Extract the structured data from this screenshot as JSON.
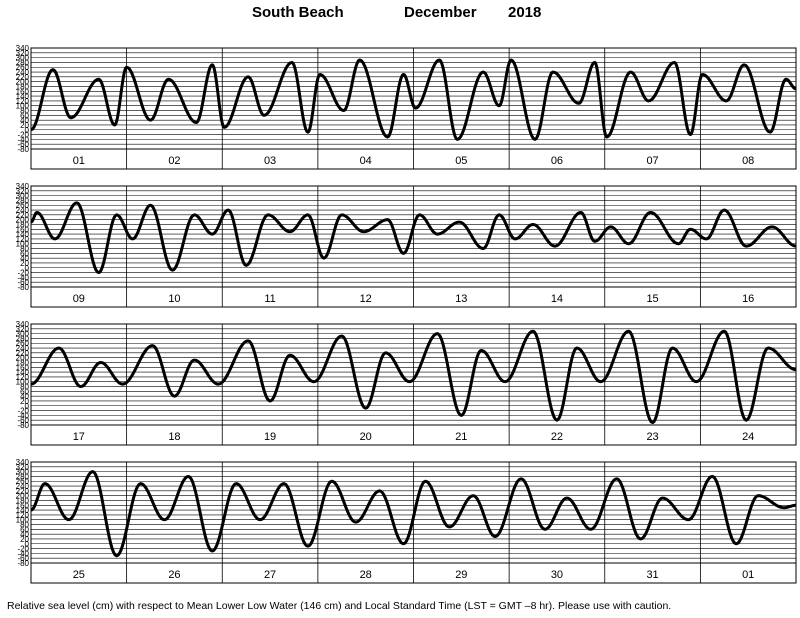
{
  "header": {
    "location": "South Beach",
    "month": "December",
    "year": "2018"
  },
  "footer": {
    "note": "Relative sea level (cm) with respect to Mean Lower Low Water (146 cm) and Local Standard Time (LST = GMT –8 hr). Please use with caution."
  },
  "chart_data": [
    {
      "type": "line",
      "title": "",
      "xlabel": "",
      "ylabel": "",
      "ylim": [
        -80,
        340
      ],
      "y_ticks": [
        340,
        320,
        300,
        280,
        260,
        240,
        220,
        200,
        180,
        160,
        140,
        120,
        100,
        80,
        60,
        40,
        20,
        0,
        -20,
        -40,
        -60,
        -80
      ],
      "categories": [
        "01",
        "02",
        "03",
        "04",
        "05",
        "06",
        "07",
        "08"
      ],
      "x": [
        0,
        5.5,
        10,
        17,
        21,
        24,
        30,
        34.5,
        41.5,
        45.5,
        48.5,
        54.5,
        58.5,
        65.5,
        69.5,
        72.5,
        78.5,
        82.5,
        89.5,
        93.5,
        96.5,
        102.5,
        107,
        113.5,
        117.5,
        120.5,
        126.5,
        131,
        137.5,
        141.5,
        144.5,
        150.5,
        155,
        161.5,
        165.5,
        168.5,
        174.5,
        179,
        185.5,
        189.5,
        192
      ],
      "y": [
        0,
        250,
        50,
        210,
        20,
        260,
        40,
        210,
        30,
        270,
        10,
        220,
        60,
        280,
        -10,
        230,
        80,
        290,
        -30,
        230,
        90,
        290,
        -40,
        240,
        100,
        290,
        -40,
        240,
        110,
        280,
        -30,
        240,
        120,
        280,
        -20,
        230,
        120,
        270,
        -10,
        210,
        170
      ]
    },
    {
      "type": "line",
      "title": "",
      "xlabel": "",
      "ylabel": "",
      "ylim": [
        -80,
        340
      ],
      "y_ticks": [
        340,
        320,
        300,
        280,
        260,
        240,
        220,
        200,
        180,
        160,
        140,
        120,
        100,
        80,
        60,
        40,
        20,
        0,
        -20,
        -40,
        -60,
        -80
      ],
      "categories": [
        "09",
        "10",
        "11",
        "12",
        "13",
        "14",
        "15",
        "16"
      ],
      "x": [
        0,
        1.5,
        6,
        11.5,
        17,
        21.5,
        25.5,
        30,
        35.5,
        41,
        45.5,
        49.5,
        54,
        59.5,
        65,
        69.5,
        73.5,
        78,
        83.5,
        89.5,
        93.5,
        97.5,
        102,
        107.5,
        113.5,
        117.5,
        121.5,
        126,
        131.5,
        138,
        141.5,
        145.5,
        150,
        155.5,
        162.5,
        165.5,
        169.5,
        174,
        179.5,
        186,
        192
      ],
      "y": [
        190,
        230,
        120,
        270,
        -20,
        220,
        120,
        260,
        -10,
        220,
        140,
        240,
        10,
        220,
        150,
        220,
        40,
        220,
        150,
        200,
        60,
        220,
        140,
        190,
        80,
        220,
        120,
        180,
        90,
        230,
        110,
        170,
        100,
        230,
        100,
        160,
        120,
        240,
        90,
        170,
        90
      ]
    },
    {
      "type": "line",
      "title": "",
      "xlabel": "",
      "ylabel": "",
      "ylim": [
        -80,
        340
      ],
      "y_ticks": [
        340,
        320,
        300,
        280,
        260,
        240,
        220,
        200,
        180,
        160,
        140,
        120,
        100,
        80,
        60,
        40,
        20,
        0,
        -20,
        -40,
        -60,
        -80
      ],
      "categories": [
        "17",
        "18",
        "19",
        "20",
        "21",
        "22",
        "23",
        "24"
      ],
      "x": [
        0,
        7,
        12.5,
        17.5,
        23,
        30.5,
        36,
        41,
        47,
        54.5,
        60,
        65,
        71,
        78,
        84,
        89,
        95,
        102,
        108,
        113,
        119,
        126,
        132,
        137,
        143,
        150,
        156,
        161,
        167,
        174,
        179.5,
        185,
        192
      ],
      "y": [
        90,
        240,
        80,
        180,
        90,
        250,
        40,
        190,
        90,
        270,
        20,
        210,
        100,
        290,
        -10,
        220,
        100,
        300,
        -40,
        230,
        100,
        310,
        -60,
        240,
        100,
        310,
        -70,
        240,
        100,
        310,
        -60,
        240,
        150
      ]
    },
    {
      "type": "line",
      "title": "",
      "xlabel": "",
      "ylabel": "",
      "ylim": [
        -80,
        340
      ],
      "y_ticks": [
        340,
        320,
        300,
        280,
        260,
        240,
        220,
        200,
        180,
        160,
        140,
        120,
        100,
        80,
        60,
        40,
        20,
        0,
        -20,
        -40,
        -60,
        -80
      ],
      "categories": [
        "25",
        "26",
        "27",
        "28",
        "29",
        "30",
        "31",
        "01"
      ],
      "x": [
        0,
        3.5,
        9.5,
        15.5,
        21.5,
        27.5,
        33.5,
        39.5,
        45.5,
        51.5,
        57.5,
        63.5,
        69.5,
        75.5,
        81.5,
        87.5,
        93.5,
        99,
        105,
        111,
        116.5,
        123,
        129,
        134.5,
        140.5,
        147,
        153,
        158.5,
        165,
        171,
        177,
        182.5,
        189,
        192
      ],
      "y": [
        140,
        250,
        100,
        300,
        -50,
        250,
        100,
        280,
        -30,
        250,
        100,
        250,
        -10,
        260,
        90,
        220,
        0,
        260,
        70,
        200,
        30,
        270,
        60,
        190,
        60,
        270,
        20,
        190,
        100,
        280,
        0,
        200,
        150,
        160
      ]
    }
  ]
}
